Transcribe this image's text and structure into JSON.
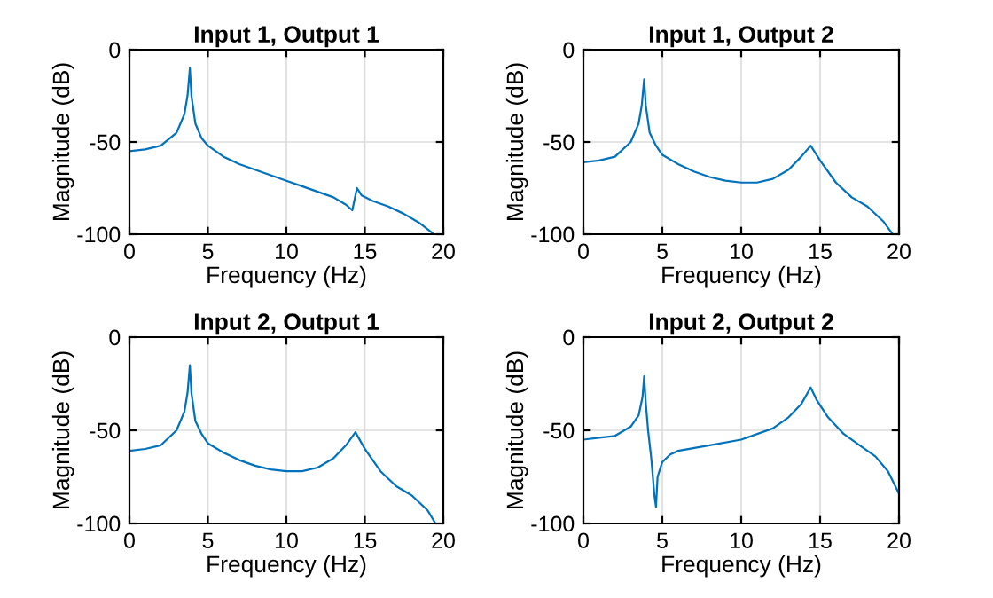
{
  "chart_data": [
    {
      "type": "line",
      "title": "Input 1, Output 1",
      "xlabel": "Frequency (Hz)",
      "ylabel": "Magnitude (dB)",
      "xlim": [
        0,
        20
      ],
      "ylim": [
        -100,
        0
      ],
      "xticks": [
        0,
        5,
        10,
        15,
        20
      ],
      "yticks": [
        -100,
        -50,
        0
      ],
      "grid": true,
      "series": [
        {
          "color": "#0072bd",
          "x": [
            0,
            1,
            2,
            3,
            3.5,
            3.7,
            3.85,
            3.95,
            4.2,
            4.6,
            5,
            6,
            7,
            8,
            9,
            10,
            11,
            12,
            13,
            13.8,
            14.2,
            14.5,
            14.8,
            15.5,
            16.5,
            17.5,
            18.5,
            19.4
          ],
          "values": [
            -55,
            -54,
            -52,
            -45,
            -35,
            -25,
            -10,
            -25,
            -40,
            -48,
            -52,
            -58,
            -62,
            -65,
            -68,
            -71,
            -74,
            -77,
            -80,
            -84,
            -87,
            -75,
            -79,
            -82,
            -85,
            -89,
            -94,
            -100
          ]
        }
      ]
    },
    {
      "type": "line",
      "title": "Input 1, Output 2",
      "xlabel": "Frequency (Hz)",
      "ylabel": "Magnitude (dB)",
      "xlim": [
        0,
        20
      ],
      "ylim": [
        -100,
        0
      ],
      "xticks": [
        0,
        5,
        10,
        15,
        20
      ],
      "yticks": [
        -100,
        -50,
        0
      ],
      "grid": true,
      "series": [
        {
          "color": "#0072bd",
          "x": [
            0,
            1,
            2,
            3,
            3.5,
            3.7,
            3.85,
            3.95,
            4.2,
            4.6,
            5,
            6,
            7,
            8,
            9,
            10,
            11,
            12,
            13,
            13.8,
            14.4,
            15,
            16,
            17,
            18,
            19,
            19.6
          ],
          "values": [
            -61,
            -60,
            -58,
            -50,
            -40,
            -30,
            -16,
            -30,
            -45,
            -52,
            -57,
            -62,
            -66,
            -69,
            -71,
            -72,
            -72,
            -70,
            -65,
            -58,
            -52,
            -60,
            -72,
            -80,
            -85,
            -93,
            -100
          ]
        }
      ]
    },
    {
      "type": "line",
      "title": "Input 2, Output 1",
      "xlabel": "Frequency (Hz)",
      "ylabel": "Magnitude (dB)",
      "xlim": [
        0,
        20
      ],
      "ylim": [
        -100,
        0
      ],
      "xticks": [
        0,
        5,
        10,
        15,
        20
      ],
      "yticks": [
        -100,
        -50,
        0
      ],
      "grid": true,
      "series": [
        {
          "color": "#0072bd",
          "x": [
            0,
            1,
            2,
            3,
            3.5,
            3.7,
            3.85,
            3.95,
            4.2,
            4.6,
            5,
            6,
            7,
            8,
            9,
            10,
            11,
            12,
            13,
            13.8,
            14.4,
            15,
            16,
            17,
            18,
            19,
            19.5
          ],
          "values": [
            -61,
            -60,
            -58,
            -50,
            -40,
            -30,
            -15,
            -30,
            -45,
            -52,
            -57,
            -62,
            -66,
            -69,
            -71,
            -72,
            -72,
            -70,
            -65,
            -58,
            -51,
            -60,
            -72,
            -80,
            -85,
            -93,
            -100
          ]
        }
      ]
    },
    {
      "type": "line",
      "title": "Input 2, Output 2",
      "xlabel": "Frequency (Hz)",
      "ylabel": "Magnitude (dB)",
      "xlim": [
        0,
        20
      ],
      "ylim": [
        -100,
        0
      ],
      "xticks": [
        0,
        5,
        10,
        15,
        20
      ],
      "yticks": [
        -100,
        -50,
        0
      ],
      "grid": true,
      "series": [
        {
          "color": "#0072bd",
          "x": [
            0,
            1,
            2,
            3,
            3.5,
            3.75,
            3.85,
            3.95,
            4.1,
            4.3,
            4.5,
            4.6,
            4.7,
            5,
            5.5,
            6,
            8,
            10,
            12,
            13,
            13.8,
            14.4,
            14.8,
            15.5,
            16.5,
            17.5,
            18.5,
            19.3,
            20
          ],
          "values": [
            -55,
            -54,
            -53,
            -48,
            -42,
            -32,
            -21,
            -35,
            -50,
            -65,
            -85,
            -91,
            -75,
            -67,
            -63,
            -61,
            -58,
            -55,
            -49,
            -43,
            -36,
            -27,
            -34,
            -43,
            -52,
            -58,
            -64,
            -72,
            -84
          ]
        }
      ]
    }
  ]
}
